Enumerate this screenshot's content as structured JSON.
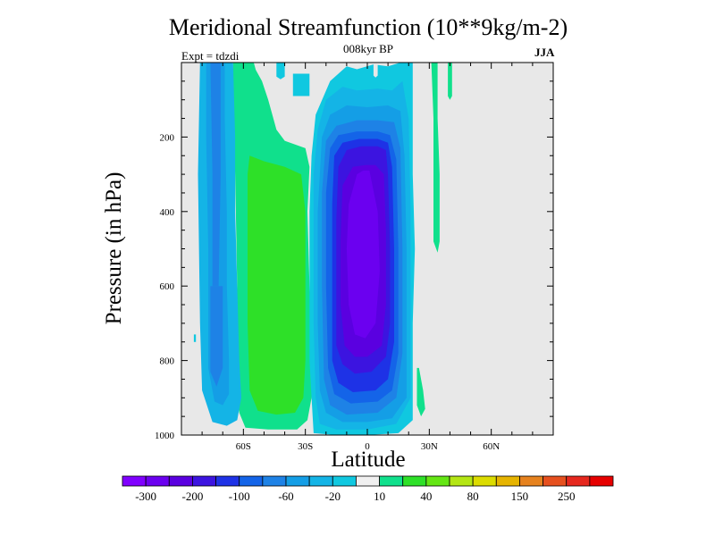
{
  "chart_data": {
    "type": "contour",
    "title": "Meridional Streamfunction (10**9kg/m-2)",
    "subtitle": "008kyr BP",
    "left_annotation": "Expt = tdzdi",
    "right_annotation": "JJA",
    "xlabel": "Latitude",
    "ylabel": "Pressure (in hPa)",
    "xlim": [
      -90,
      90
    ],
    "ylim": [
      1000,
      0
    ],
    "x_ticks": [
      {
        "value": -60,
        "label": "60S"
      },
      {
        "value": -30,
        "label": "30S"
      },
      {
        "value": 0,
        "label": "0"
      },
      {
        "value": 30,
        "label": "30N"
      },
      {
        "value": 60,
        "label": "60N"
      }
    ],
    "y_ticks": [
      {
        "value": 200,
        "label": "200"
      },
      {
        "value": 400,
        "label": "400"
      },
      {
        "value": 600,
        "label": "600"
      },
      {
        "value": 800,
        "label": "800"
      },
      {
        "value": 1000,
        "label": "1000"
      }
    ],
    "missing_color": "#e8e8e8",
    "colorbar": {
      "levels": [
        "-300",
        "-250",
        "-200",
        "-150",
        "-100",
        "-80",
        "-60",
        "-40",
        "-20",
        "-10",
        "10",
        "20",
        "40",
        "60",
        "80",
        "100",
        "150",
        "200",
        "250",
        "300"
      ],
      "labels": [
        "-300",
        "-200",
        "-100",
        "-60",
        "-20",
        "10",
        "40",
        "80",
        "150",
        "250"
      ],
      "colors": [
        "#8000ff",
        "#6b00f0",
        "#5a00e0",
        "#3c14e0",
        "#1e32e6",
        "#1464e8",
        "#1e82e6",
        "#149ee6",
        "#14b4e6",
        "#10c8e0",
        "#f0f0f0",
        "#10e08c",
        "#2ee028",
        "#64e614",
        "#b4e614",
        "#dcdc00",
        "#e6b400",
        "#e6821e",
        "#e6501e",
        "#e6281e",
        "#e60000"
      ]
    },
    "regions": [
      {
        "name": "sh-upper-cell",
        "level": 10,
        "color": "#10e08c",
        "points": [
          [
            -65,
            0
          ],
          [
            -55,
            0
          ],
          [
            -54,
            20
          ],
          [
            -51,
            50
          ],
          [
            -48,
            100
          ],
          [
            -44,
            180
          ],
          [
            -40,
            210
          ],
          [
            -30,
            230
          ],
          [
            -28,
            280
          ],
          [
            -29,
            400
          ],
          [
            -28,
            600
          ],
          [
            -27,
            800
          ],
          [
            -27,
            900
          ],
          [
            -29,
            960
          ],
          [
            -34,
            985
          ],
          [
            -48,
            985
          ],
          [
            -59,
            980
          ],
          [
            -62,
            940
          ],
          [
            -63,
            880
          ],
          [
            -63,
            600
          ],
          [
            -64,
            300
          ],
          [
            -65,
            100
          ]
        ]
      },
      {
        "name": "sh-main-cell",
        "level": 20,
        "color": "#2ee028",
        "points": [
          [
            -57,
            250
          ],
          [
            -50,
            265
          ],
          [
            -40,
            280
          ],
          [
            -32,
            300
          ],
          [
            -30,
            400
          ],
          [
            -30,
            600
          ],
          [
            -30,
            800
          ],
          [
            -31,
            900
          ],
          [
            -35,
            940
          ],
          [
            -44,
            945
          ],
          [
            -53,
            935
          ],
          [
            -57,
            880
          ],
          [
            -58,
            700
          ],
          [
            -58,
            500
          ],
          [
            -58,
            300
          ]
        ]
      },
      {
        "name": "sh-polar-outer",
        "level": -20,
        "color": "#14b4e6",
        "points": [
          [
            -81,
            0
          ],
          [
            -65,
            0
          ],
          [
            -64,
            200
          ],
          [
            -64,
            400
          ],
          [
            -63,
            600
          ],
          [
            -62,
            800
          ],
          [
            -61,
            900
          ],
          [
            -63,
            960
          ],
          [
            -68,
            975
          ],
          [
            -75,
            965
          ],
          [
            -80,
            880
          ],
          [
            -81,
            700
          ],
          [
            -82,
            300
          ]
        ]
      },
      {
        "name": "sh-polar-inner",
        "level": -40,
        "color": "#149ee6",
        "points": [
          [
            -78,
            0
          ],
          [
            -69,
            0
          ],
          [
            -69,
            150
          ],
          [
            -68,
            400
          ],
          [
            -68,
            600
          ],
          [
            -67,
            800
          ],
          [
            -67,
            890
          ],
          [
            -70,
            920
          ],
          [
            -74,
            910
          ],
          [
            -77,
            820
          ],
          [
            -77,
            500
          ],
          [
            -78,
            200
          ]
        ]
      },
      {
        "name": "sh-polar-core",
        "level": -60,
        "color": "#1e82e6",
        "points": [
          [
            -76,
            0
          ],
          [
            -71,
            0
          ],
          [
            -71,
            300
          ],
          [
            -72,
            600
          ],
          [
            -75,
            600
          ],
          [
            -75,
            300
          ]
        ]
      },
      {
        "name": "sh-polar-lower-core",
        "level": -60,
        "color": "#1e82e6",
        "points": [
          [
            -76,
            600
          ],
          [
            -70,
            600
          ],
          [
            -70,
            820
          ],
          [
            -73,
            870
          ],
          [
            -76,
            830
          ]
        ]
      },
      {
        "name": "hadley-edge",
        "level": -10,
        "color": "#10c8e0",
        "points": [
          [
            -25,
            140
          ],
          [
            -18,
            50
          ],
          [
            -10,
            10
          ],
          [
            -5,
            18
          ],
          [
            3,
            5
          ],
          [
            10,
            10
          ],
          [
            16,
            0
          ],
          [
            22,
            0
          ],
          [
            22,
            140
          ],
          [
            22,
            300
          ],
          [
            23,
            500
          ],
          [
            22,
            700
          ],
          [
            22,
            850
          ],
          [
            22,
            960
          ],
          [
            15,
            995
          ],
          [
            0,
            1000
          ],
          [
            -15,
            1000
          ],
          [
            -26,
            995
          ],
          [
            -27,
            900
          ],
          [
            -28,
            800
          ],
          [
            -28,
            600
          ],
          [
            -28,
            400
          ],
          [
            -27,
            250
          ]
        ]
      },
      {
        "name": "hadley-20",
        "level": -20,
        "color": "#14b4e6",
        "points": [
          [
            -24,
            180
          ],
          [
            -20,
            100
          ],
          [
            -12,
            65
          ],
          [
            -5,
            75
          ],
          [
            5,
            70
          ],
          [
            12,
            75
          ],
          [
            17,
            50
          ],
          [
            20,
            150
          ],
          [
            21,
            400
          ],
          [
            21,
            700
          ],
          [
            21,
            900
          ],
          [
            14,
            970
          ],
          [
            0,
            985
          ],
          [
            -15,
            985
          ],
          [
            -23,
            970
          ],
          [
            -25,
            900
          ],
          [
            -26,
            700
          ],
          [
            -26,
            500
          ],
          [
            -26,
            300
          ]
        ]
      },
      {
        "name": "hadley-40",
        "level": -40,
        "color": "#149ee6",
        "points": [
          [
            -22,
            200
          ],
          [
            -18,
            140
          ],
          [
            -10,
            115
          ],
          [
            0,
            120
          ],
          [
            10,
            115
          ],
          [
            16,
            130
          ],
          [
            18,
            250
          ],
          [
            19,
            500
          ],
          [
            19,
            750
          ],
          [
            19,
            900
          ],
          [
            12,
            955
          ],
          [
            0,
            965
          ],
          [
            -12,
            965
          ],
          [
            -20,
            940
          ],
          [
            -23,
            880
          ],
          [
            -24,
            700
          ],
          [
            -24,
            400
          ]
        ]
      },
      {
        "name": "hadley-60",
        "level": -60,
        "color": "#1e82e6",
        "points": [
          [
            -20,
            210
          ],
          [
            -15,
            170
          ],
          [
            -5,
            155
          ],
          [
            5,
            155
          ],
          [
            13,
            160
          ],
          [
            16,
            230
          ],
          [
            17,
            500
          ],
          [
            17,
            780
          ],
          [
            14,
            900
          ],
          [
            5,
            940
          ],
          [
            -10,
            945
          ],
          [
            -18,
            920
          ],
          [
            -21,
            850
          ],
          [
            -22,
            600
          ],
          [
            -22,
            350
          ]
        ]
      },
      {
        "name": "hadley-80",
        "level": -80,
        "color": "#1464e8",
        "points": [
          [
            -18,
            230
          ],
          [
            -14,
            195
          ],
          [
            -5,
            185
          ],
          [
            5,
            185
          ],
          [
            11,
            195
          ],
          [
            14,
            260
          ],
          [
            15,
            500
          ],
          [
            15,
            780
          ],
          [
            12,
            880
          ],
          [
            5,
            910
          ],
          [
            -8,
            915
          ],
          [
            -16,
            890
          ],
          [
            -19,
            820
          ],
          [
            -20,
            600
          ],
          [
            -20,
            350
          ]
        ]
      },
      {
        "name": "hadley-100",
        "level": -100,
        "color": "#1e32e6",
        "points": [
          [
            -16,
            250
          ],
          [
            -12,
            215
          ],
          [
            -4,
            205
          ],
          [
            5,
            205
          ],
          [
            10,
            215
          ],
          [
            12,
            280
          ],
          [
            13,
            500
          ],
          [
            13,
            750
          ],
          [
            10,
            850
          ],
          [
            4,
            880
          ],
          [
            -7,
            885
          ],
          [
            -14,
            860
          ],
          [
            -17,
            800
          ],
          [
            -17,
            600
          ],
          [
            -17,
            380
          ]
        ]
      },
      {
        "name": "hadley-150",
        "level": -150,
        "color": "#3c14e0",
        "points": [
          [
            -14,
            280
          ],
          [
            -10,
            235
          ],
          [
            -3,
            225
          ],
          [
            5,
            225
          ],
          [
            9,
            235
          ],
          [
            10,
            300
          ],
          [
            11,
            500
          ],
          [
            11,
            700
          ],
          [
            9,
            790
          ],
          [
            2,
            830
          ],
          [
            -6,
            835
          ],
          [
            -12,
            810
          ],
          [
            -15,
            760
          ],
          [
            -15,
            600
          ],
          [
            -15,
            420
          ]
        ]
      },
      {
        "name": "hadley-200",
        "level": -200,
        "color": "#5a00e0",
        "points": [
          [
            -12,
            330
          ],
          [
            -7,
            280
          ],
          [
            -1,
            275
          ],
          [
            4,
            275
          ],
          [
            8,
            300
          ],
          [
            9,
            450
          ],
          [
            9,
            650
          ],
          [
            7,
            760
          ],
          [
            0,
            790
          ],
          [
            -6,
            790
          ],
          [
            -11,
            760
          ],
          [
            -13,
            650
          ],
          [
            -13,
            480
          ]
        ]
      },
      {
        "name": "hadley-250",
        "level": -250,
        "color": "#6b00f0",
        "points": [
          [
            -5,
            300
          ],
          [
            -2,
            290
          ],
          [
            1,
            290
          ],
          [
            5,
            400
          ],
          [
            6,
            560
          ],
          [
            4,
            700
          ],
          [
            -1,
            740
          ],
          [
            -6,
            730
          ],
          [
            -9,
            650
          ],
          [
            -10,
            500
          ],
          [
            -9,
            380
          ]
        ]
      },
      {
        "name": "hadley-top-notch",
        "level": 10,
        "color": "#e8e8e8",
        "points": [
          [
            3,
            0
          ],
          [
            5,
            0
          ],
          [
            5,
            35
          ],
          [
            4,
            40
          ],
          [
            3,
            35
          ]
        ]
      },
      {
        "name": "upper-blob-1",
        "level": -10,
        "color": "#10c8e0",
        "points": [
          [
            -44,
            0
          ],
          [
            -40,
            0
          ],
          [
            -40,
            38
          ],
          [
            -42,
            45
          ],
          [
            -44,
            38
          ]
        ]
      },
      {
        "name": "upper-blob-2",
        "level": -10,
        "color": "#10c8e0",
        "points": [
          [
            -36,
            30
          ],
          [
            -28,
            30
          ],
          [
            -28,
            90
          ],
          [
            -36,
            90
          ]
        ]
      },
      {
        "name": "nh-upper-cell-a",
        "level": 10,
        "color": "#10e08c",
        "points": [
          [
            31,
            0
          ],
          [
            34,
            0
          ],
          [
            34,
            150
          ],
          [
            35,
            300
          ],
          [
            35,
            480
          ],
          [
            34,
            510
          ],
          [
            32,
            480
          ],
          [
            32,
            300
          ],
          [
            32,
            150
          ]
        ]
      },
      {
        "name": "nh-upper-cell-b",
        "level": 10,
        "color": "#10e08c",
        "points": [
          [
            39,
            0
          ],
          [
            41,
            0
          ],
          [
            41,
            90
          ],
          [
            40,
            100
          ],
          [
            39,
            90
          ]
        ]
      },
      {
        "name": "nh-surface-cell",
        "level": 10,
        "color": "#10e08c",
        "points": [
          [
            24,
            820
          ],
          [
            25,
            820
          ],
          [
            27,
            880
          ],
          [
            28,
            930
          ],
          [
            26,
            950
          ],
          [
            24,
            920
          ]
        ]
      },
      {
        "name": "sh-edge-speck",
        "level": -10,
        "color": "#10c8e0",
        "points": [
          [
            -84,
            730
          ],
          [
            -83,
            730
          ],
          [
            -83,
            750
          ],
          [
            -84,
            750
          ]
        ]
      }
    ]
  }
}
